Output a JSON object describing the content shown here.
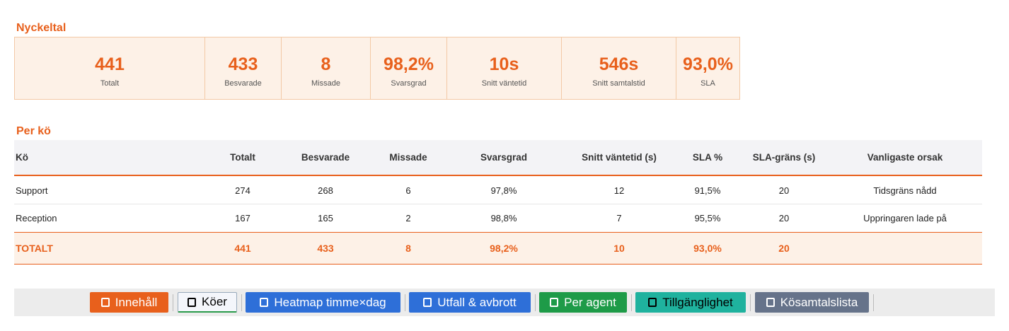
{
  "sections": {
    "kpi_title": "Nyckeltal",
    "table_title": "Per kö"
  },
  "kpis": [
    {
      "value": "441",
      "label": "Totalt"
    },
    {
      "value": "433",
      "label": "Besvarade"
    },
    {
      "value": "8",
      "label": "Missade"
    },
    {
      "value": "98,2%",
      "label": "Svarsgrad"
    },
    {
      "value": "10s",
      "label": "Snitt väntetid"
    },
    {
      "value": "546s",
      "label": "Snitt samtalstid"
    },
    {
      "value": "93,0%",
      "label": "SLA"
    }
  ],
  "table": {
    "columns": [
      "Kö",
      "Totalt",
      "Besvarade",
      "Missade",
      "Svarsgrad",
      "Snitt väntetid (s)",
      "SLA %",
      "SLA-gräns (s)",
      "Vanligaste orsak"
    ],
    "rows": [
      [
        "Support",
        "274",
        "268",
        "6",
        "97,8%",
        "12",
        "91,5%",
        "20",
        "Tidsgräns nådd"
      ],
      [
        "Reception",
        "167",
        "165",
        "2",
        "98,8%",
        "7",
        "95,5%",
        "20",
        "Uppringaren lade på"
      ]
    ],
    "total": [
      "TOTALT",
      "441",
      "433",
      "8",
      "98,2%",
      "10",
      "93,0%",
      "20"
    ]
  },
  "tabs": [
    "Innehåll",
    "Köer",
    "Heatmap timme×dag",
    "Utfall & avbrott",
    "Per agent",
    "Tillgänglighet",
    "Kösamtalslista"
  ]
}
